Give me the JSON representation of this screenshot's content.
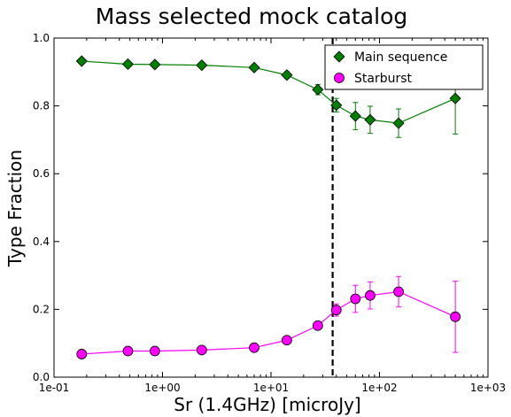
{
  "chart_data": {
    "type": "line",
    "title": "Mass selected mock catalog",
    "xlabel": "Sr (1.4GHz) [microJy]",
    "ylabel": "Type Fraction",
    "xscale": "log",
    "xlim": [
      0.1,
      1000
    ],
    "ylim": [
      0.0,
      1.0
    ],
    "xticks": [
      {
        "value": 0.1,
        "label": "1e-01"
      },
      {
        "value": 1,
        "label": "1e+00"
      },
      {
        "value": 10,
        "label": "1e+01"
      },
      {
        "value": 100,
        "label": "1e+02"
      },
      {
        "value": 1000,
        "label": "1e+03"
      }
    ],
    "yticks": [
      {
        "value": 0.0,
        "label": "0.0"
      },
      {
        "value": 0.2,
        "label": "0.2"
      },
      {
        "value": 0.4,
        "label": "0.4"
      },
      {
        "value": 0.6,
        "label": "0.6"
      },
      {
        "value": 0.8,
        "label": "0.8"
      },
      {
        "value": 1.0,
        "label": "1.0"
      }
    ],
    "grid": false,
    "legend_position": "top-right",
    "vline_x": 37,
    "series": [
      {
        "name": "Main sequence",
        "color": "#007f00",
        "marker": "diamond",
        "x": [
          0.18,
          0.48,
          0.85,
          2.3,
          7.0,
          14,
          27,
          40,
          60,
          82,
          150,
          500
        ],
        "y": [
          0.932,
          0.923,
          0.922,
          0.92,
          0.913,
          0.891,
          0.848,
          0.802,
          0.77,
          0.759,
          0.749,
          0.822
        ],
        "err": [
          0.005,
          0.005,
          0.005,
          0.005,
          0.007,
          0.01,
          0.015,
          0.02,
          0.04,
          0.04,
          0.042,
          0.105
        ]
      },
      {
        "name": "Starburst",
        "color": "#ff00ff",
        "marker": "circle",
        "x": [
          0.18,
          0.48,
          0.85,
          2.3,
          7.0,
          14,
          27,
          40,
          60,
          82,
          150,
          500
        ],
        "y": [
          0.068,
          0.077,
          0.077,
          0.08,
          0.087,
          0.109,
          0.152,
          0.198,
          0.231,
          0.241,
          0.252,
          0.178
        ],
        "err": [
          0.0,
          0.0,
          0.0,
          0.0,
          0.0,
          0.0,
          0.01,
          0.018,
          0.04,
          0.04,
          0.045,
          0.105
        ]
      }
    ]
  }
}
